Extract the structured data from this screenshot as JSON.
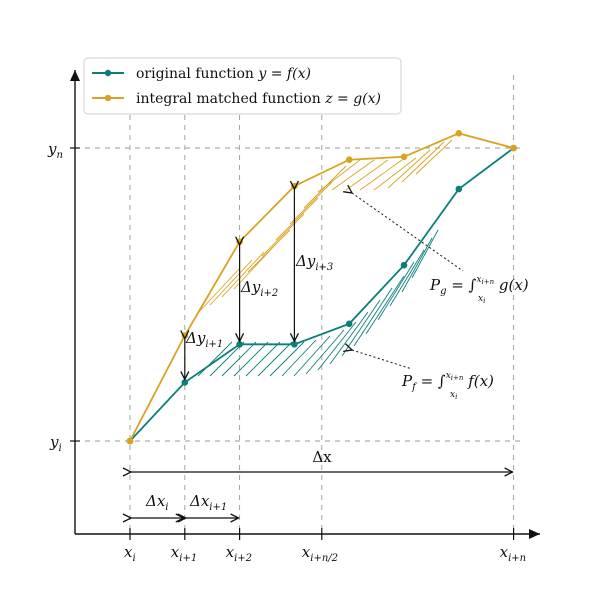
{
  "colors": {
    "original": "#0a7f7a",
    "integral": "#d9a21f",
    "axis": "#111111",
    "grid": "#9a9a9a"
  },
  "legend": {
    "original_text": "original function ",
    "original_math": "y = f(x)",
    "integral_text": "integral matched function ",
    "integral_math": "z = g(x)"
  },
  "axes": {
    "y_ticks": [
      {
        "base": "y",
        "sub": "n"
      },
      {
        "base": "y",
        "sub": "i"
      }
    ],
    "x_ticks": [
      {
        "base": "x",
        "sub": "i"
      },
      {
        "base": "x",
        "sub": "i+1"
      },
      {
        "base": "x",
        "sub": "i+2"
      },
      {
        "base": "x",
        "sub": "i+n/2"
      },
      {
        "base": "x",
        "sub": "i+n"
      }
    ]
  },
  "annotations": {
    "delta_x": "Δx",
    "delta_xi": {
      "base": "Δx",
      "sub": "i"
    },
    "delta_xi1": {
      "base": "Δx",
      "sub": "i+1"
    },
    "delta_yi1": {
      "base": "Δy",
      "sub": "i+1"
    },
    "delta_yi2": {
      "base": "Δy",
      "sub": "i+2"
    },
    "delta_yi3": {
      "base": "Δy",
      "sub": "i+3"
    },
    "pg": {
      "lhs": "P",
      "lhs_sub": "g",
      "eq": " = ∫",
      "lower": "x",
      "lower_sub": "i",
      "upper": "x",
      "upper_sub": "i+n",
      "fn": " g(x)"
    },
    "pf": {
      "lhs": "P",
      "lhs_sub": "f",
      "eq": " = ∫",
      "lower": "x",
      "lower_sub": "i",
      "upper": "x",
      "upper_sub": "i+n",
      "fn": " f(x)"
    }
  },
  "chart_data": {
    "type": "line",
    "x": [
      0,
      1,
      2,
      3,
      4,
      5,
      6,
      7
    ],
    "series": [
      {
        "name": "original function y = f(x)",
        "values": [
          0,
          1.0,
          1.65,
          1.65,
          2.0,
          3.0,
          4.3,
          5.0
        ]
      },
      {
        "name": "integral matched function z = g(x)",
        "values": [
          0,
          1.8,
          3.4,
          4.35,
          4.8,
          4.85,
          5.25,
          5.0
        ]
      }
    ]
  }
}
